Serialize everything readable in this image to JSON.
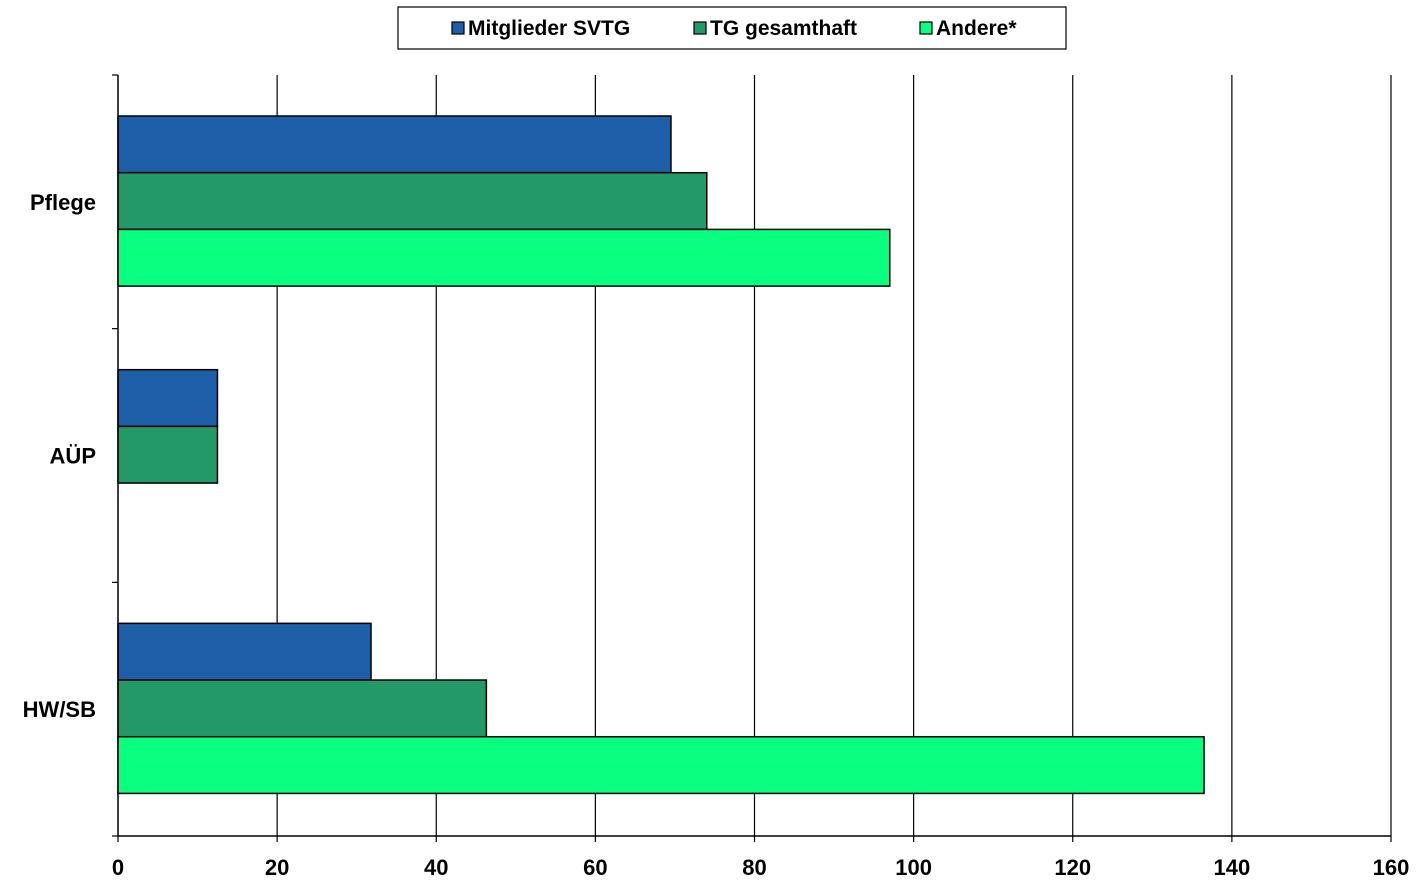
{
  "chart_data": {
    "type": "bar",
    "orientation": "horizontal",
    "categories": [
      "Pflege",
      "AÜP",
      "HW/SB"
    ],
    "series": [
      {
        "name": "Mitglieder SVTG",
        "color": "#1f5ea8",
        "values": [
          69.5,
          12.5,
          31.8
        ]
      },
      {
        "name": "TG gesamthaft",
        "color": "#229966",
        "values": [
          74,
          12.5,
          46.3
        ]
      },
      {
        "name": "Andere*",
        "color": "#08ff7f",
        "values": [
          97,
          null,
          136.5
        ]
      }
    ],
    "xlim": [
      0,
      160
    ],
    "x_ticks": [
      0,
      20,
      40,
      60,
      80,
      100,
      120,
      140,
      160
    ],
    "grid": "vertical",
    "legend_position": "top-center",
    "title": "",
    "xlabel": "",
    "ylabel": ""
  }
}
